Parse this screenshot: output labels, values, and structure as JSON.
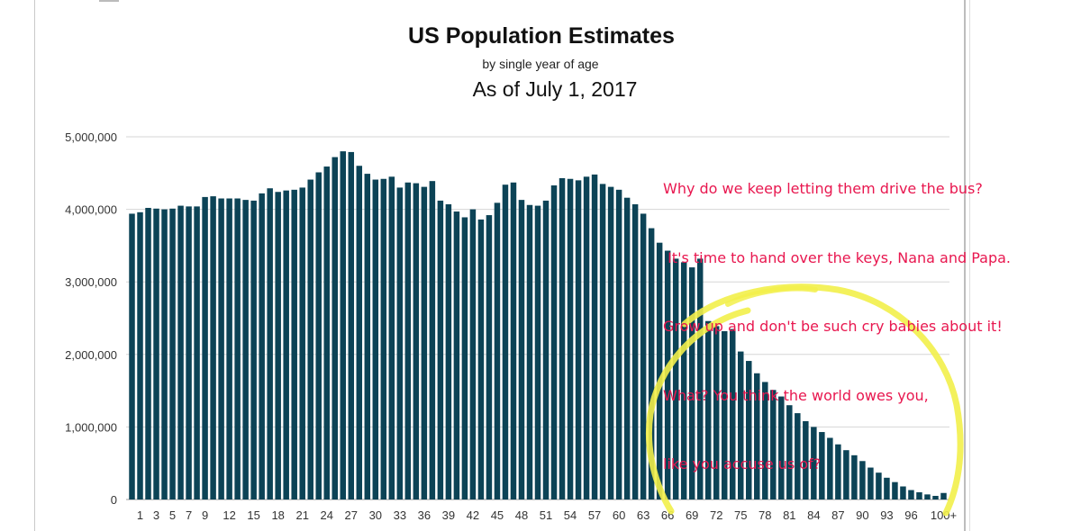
{
  "chart_data": {
    "type": "bar",
    "title": "US Population Estimates",
    "subtitle": "by single year of age",
    "date_label": "As of July 1, 2017",
    "xlabel": "",
    "ylabel": "",
    "ylim": [
      0,
      5000000
    ],
    "y_ticks": [
      {
        "value": 0,
        "label": "0"
      },
      {
        "value": 1000000,
        "label": "1,000,000"
      },
      {
        "value": 2000000,
        "label": "2,000,000"
      },
      {
        "value": 3000000,
        "label": "3,000,000"
      },
      {
        "value": 4000000,
        "label": "4,000,000"
      },
      {
        "value": 5000000,
        "label": "5,000,000"
      }
    ],
    "grid": true,
    "bar_color": "#0c4356",
    "x_tick_labels": [
      {
        "index": 1,
        "label": "1"
      },
      {
        "index": 3,
        "label": "3"
      },
      {
        "index": 5,
        "label": "5"
      },
      {
        "index": 7,
        "label": "7"
      },
      {
        "index": 9,
        "label": "9"
      },
      {
        "index": 12,
        "label": "12"
      },
      {
        "index": 15,
        "label": "15"
      },
      {
        "index": 18,
        "label": "18"
      },
      {
        "index": 21,
        "label": "21"
      },
      {
        "index": 24,
        "label": "24"
      },
      {
        "index": 27,
        "label": "27"
      },
      {
        "index": 30,
        "label": "30"
      },
      {
        "index": 33,
        "label": "33"
      },
      {
        "index": 36,
        "label": "36"
      },
      {
        "index": 39,
        "label": "39"
      },
      {
        "index": 42,
        "label": "42"
      },
      {
        "index": 45,
        "label": "45"
      },
      {
        "index": 48,
        "label": "48"
      },
      {
        "index": 51,
        "label": "51"
      },
      {
        "index": 54,
        "label": "54"
      },
      {
        "index": 57,
        "label": "57"
      },
      {
        "index": 60,
        "label": "60"
      },
      {
        "index": 63,
        "label": "63"
      },
      {
        "index": 66,
        "label": "66"
      },
      {
        "index": 69,
        "label": "69"
      },
      {
        "index": 72,
        "label": "72"
      },
      {
        "index": 75,
        "label": "75"
      },
      {
        "index": 78,
        "label": "78"
      },
      {
        "index": 81,
        "label": "81"
      },
      {
        "index": 84,
        "label": "84"
      },
      {
        "index": 87,
        "label": "87"
      },
      {
        "index": 90,
        "label": "90"
      },
      {
        "index": 93,
        "label": "93"
      },
      {
        "index": 96,
        "label": "96"
      },
      {
        "index": 100,
        "label": "100+"
      }
    ],
    "categories": [
      "0",
      "1",
      "2",
      "3",
      "4",
      "5",
      "6",
      "7",
      "8",
      "9",
      "10",
      "11",
      "12",
      "13",
      "14",
      "15",
      "16",
      "17",
      "18",
      "19",
      "20",
      "21",
      "22",
      "23",
      "24",
      "25",
      "26",
      "27",
      "28",
      "29",
      "30",
      "31",
      "32",
      "33",
      "34",
      "35",
      "36",
      "37",
      "38",
      "39",
      "40",
      "41",
      "42",
      "43",
      "44",
      "45",
      "46",
      "47",
      "48",
      "49",
      "50",
      "51",
      "52",
      "53",
      "54",
      "55",
      "56",
      "57",
      "58",
      "59",
      "60",
      "61",
      "62",
      "63",
      "64",
      "65",
      "66",
      "67",
      "68",
      "69",
      "70",
      "71",
      "72",
      "73",
      "74",
      "75",
      "76",
      "77",
      "78",
      "79",
      "80",
      "81",
      "82",
      "83",
      "84",
      "85",
      "86",
      "87",
      "88",
      "89",
      "90",
      "91",
      "92",
      "93",
      "94",
      "95",
      "96",
      "97",
      "98",
      "99",
      "100+"
    ],
    "values": [
      3940000,
      3960000,
      4020000,
      4010000,
      4000000,
      4010000,
      4050000,
      4040000,
      4040000,
      4170000,
      4180000,
      4150000,
      4150000,
      4150000,
      4130000,
      4120000,
      4220000,
      4290000,
      4240000,
      4260000,
      4270000,
      4300000,
      4410000,
      4510000,
      4590000,
      4720000,
      4800000,
      4790000,
      4600000,
      4490000,
      4410000,
      4420000,
      4450000,
      4300000,
      4370000,
      4360000,
      4310000,
      4390000,
      4120000,
      4070000,
      3970000,
      3890000,
      4000000,
      3860000,
      3920000,
      4090000,
      4340000,
      4370000,
      4130000,
      4060000,
      4050000,
      4120000,
      4330000,
      4430000,
      4420000,
      4400000,
      4450000,
      4480000,
      4350000,
      4310000,
      4270000,
      4160000,
      4070000,
      3940000,
      3740000,
      3540000,
      3430000,
      3320000,
      3270000,
      3200000,
      3320000,
      2460000,
      2390000,
      2320000,
      2350000,
      2040000,
      1910000,
      1740000,
      1620000,
      1510000,
      1420000,
      1300000,
      1190000,
      1080000,
      1000000,
      930000,
      850000,
      760000,
      680000,
      610000,
      530000,
      440000,
      370000,
      300000,
      240000,
      180000,
      130000,
      100000,
      70000,
      50000,
      90000
    ]
  },
  "annotation": {
    "lines": [
      "Why do we keep letting them drive the bus?",
      " It's time to hand over the keys, Nana and Papa.",
      "Grow up and don't be such cry babies about it!",
      "What? You think the world owes you,",
      "like you accuse us of?"
    ],
    "color": "#e8174f",
    "highlight_color": "#f2f04a"
  }
}
